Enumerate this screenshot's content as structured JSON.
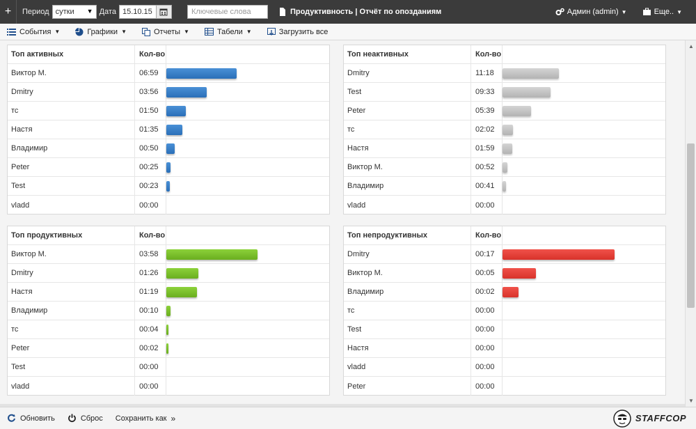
{
  "topbar": {
    "period_label": "Период",
    "period_value": "сутки",
    "date_label": "Дата",
    "date_value": "15.10.15",
    "keywords_placeholder": "Ключевые слова",
    "report_title": "Продуктивность | Отчёт по опозданиям",
    "user_menu": "Админ (admin)",
    "more_menu": "Еще.."
  },
  "menubar": {
    "events": "События",
    "charts": "Графики",
    "reports": "Отчеты",
    "timesheets": "Табели",
    "load_all": "Загрузить все"
  },
  "panels": [
    {
      "title": "Топ активных",
      "count_header": "Кол-во",
      "color": "blue",
      "rows": [
        {
          "name": "Виктор М.",
          "time": "06:59",
          "share": 0.439
        },
        {
          "name": "Dmitry",
          "time": "03:56",
          "share": 0.25
        },
        {
          "name": "тс",
          "time": "01:50",
          "share": 0.12
        },
        {
          "name": "Настя",
          "time": "01:35",
          "share": 0.1
        },
        {
          "name": "Владимир",
          "time": "00:50",
          "share": 0.05
        },
        {
          "name": "Peter",
          "time": "00:25",
          "share": 0.025
        },
        {
          "name": "Test",
          "time": "00:23",
          "share": 0.022
        },
        {
          "name": "vladd",
          "time": "00:00",
          "share": 0
        }
      ]
    },
    {
      "title": "Топ неактивных",
      "count_header": "Кол-во",
      "color": "gray",
      "rows": [
        {
          "name": "Dmitry",
          "time": "11:18",
          "share": 0.35
        },
        {
          "name": "Test",
          "time": "09:33",
          "share": 0.3
        },
        {
          "name": "Peter",
          "time": "05:39",
          "share": 0.18
        },
        {
          "name": "тс",
          "time": "02:02",
          "share": 0.064
        },
        {
          "name": "Настя",
          "time": "01:59",
          "share": 0.062
        },
        {
          "name": "Виктор М.",
          "time": "00:52",
          "share": 0.03
        },
        {
          "name": "Владимир",
          "time": "00:41",
          "share": 0.022
        },
        {
          "name": "vladd",
          "time": "00:00",
          "share": 0
        }
      ]
    },
    {
      "title": "Топ продуктивных",
      "count_header": "Кол-во",
      "color": "green",
      "rows": [
        {
          "name": "Виктор М.",
          "time": "03:58",
          "share": 0.57
        },
        {
          "name": "Dmitry",
          "time": "01:26",
          "share": 0.2
        },
        {
          "name": "Настя",
          "time": "01:19",
          "share": 0.19
        },
        {
          "name": "Владимир",
          "time": "00:10",
          "share": 0.025
        },
        {
          "name": "тс",
          "time": "00:04",
          "share": 0.01
        },
        {
          "name": "Peter",
          "time": "00:02",
          "share": 0.008
        },
        {
          "name": "Test",
          "time": "00:00",
          "share": 0
        },
        {
          "name": "vladd",
          "time": "00:00",
          "share": 0
        }
      ]
    },
    {
      "title": "Топ непродуктивных",
      "count_header": "Кол-во",
      "color": "red",
      "rows": [
        {
          "name": "Dmitry",
          "time": "00:17",
          "share": 0.7
        },
        {
          "name": "Виктор М.",
          "time": "00:05",
          "share": 0.21
        },
        {
          "name": "Владимир",
          "time": "00:02",
          "share": 0.1
        },
        {
          "name": "тс",
          "time": "00:00",
          "share": 0
        },
        {
          "name": "Test",
          "time": "00:00",
          "share": 0
        },
        {
          "name": "Настя",
          "time": "00:00",
          "share": 0
        },
        {
          "name": "vladd",
          "time": "00:00",
          "share": 0
        },
        {
          "name": "Peter",
          "time": "00:00",
          "share": 0
        }
      ]
    }
  ],
  "bottombar": {
    "refresh": "Обновить",
    "reset": "Сброс",
    "save_as": "Сохранить как",
    "logo_text": "STAFFCOP"
  }
}
